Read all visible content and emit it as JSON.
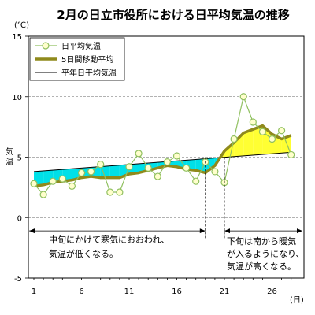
{
  "chart_data": {
    "type": "line",
    "title": "2月の日立市役所における日平均気温の推移",
    "ylabel": "気温",
    "y_unit": "(℃)",
    "x_unit": "(日)",
    "ylim": [
      -5,
      15
    ],
    "xlim": [
      1,
      28
    ],
    "y_ticks": [
      -5,
      0,
      5,
      10,
      15
    ],
    "x_ticks": [
      1,
      6,
      11,
      16,
      21,
      26
    ],
    "grid": "horizontal",
    "legend_position": "top-left",
    "series": [
      {
        "name": "日平均気温",
        "color": "#90c060",
        "days": [
          1,
          2,
          3,
          4,
          5,
          6,
          7,
          8,
          9,
          10,
          11,
          12,
          13,
          14,
          15,
          16,
          17,
          18,
          19,
          20,
          21,
          22,
          23,
          24,
          25,
          26,
          27,
          28
        ],
        "values": [
          2.8,
          1.9,
          3.0,
          3.2,
          2.6,
          3.7,
          3.8,
          4.4,
          2.1,
          2.1,
          4.2,
          5.3,
          4.1,
          3.4,
          4.6,
          5.1,
          4.1,
          3.0,
          4.6,
          3.8,
          2.9,
          6.5,
          10.0,
          7.9,
          7.1,
          6.5,
          7.2,
          5.2
        ]
      },
      {
        "name": "5日間移動平均",
        "color": "#8f8a1c",
        "days": [
          1,
          2,
          3,
          4,
          5,
          6,
          7,
          8,
          9,
          10,
          11,
          12,
          13,
          14,
          15,
          16,
          17,
          18,
          19,
          20,
          21,
          22,
          23,
          24,
          25,
          26,
          27,
          28
        ],
        "values": [
          2.6,
          2.7,
          2.9,
          3.0,
          3.1,
          3.3,
          3.4,
          3.3,
          3.3,
          3.3,
          3.6,
          3.7,
          3.9,
          4.1,
          4.3,
          4.2,
          4.0,
          3.9,
          3.7,
          4.3,
          5.5,
          6.2,
          7.0,
          7.3,
          7.6,
          6.9,
          6.5,
          6.8
        ]
      },
      {
        "name": "平年日平均気温",
        "color": "#000000",
        "days": [
          1,
          28
        ],
        "values": [
          3.8,
          5.4
        ]
      }
    ],
    "annotations": {
      "left": [
        "中旬にかけて寒気におおわれ、",
        "気温が低くなる。"
      ],
      "right": [
        "下旬は南から暖気",
        "が入るようになり、",
        "気温が高くなる。"
      ],
      "left_range": [
        1,
        19
      ],
      "right_range": [
        21,
        28
      ]
    },
    "fill_colors": {
      "below_normal": "#00e0e8",
      "above_normal": "#ffff33"
    }
  }
}
